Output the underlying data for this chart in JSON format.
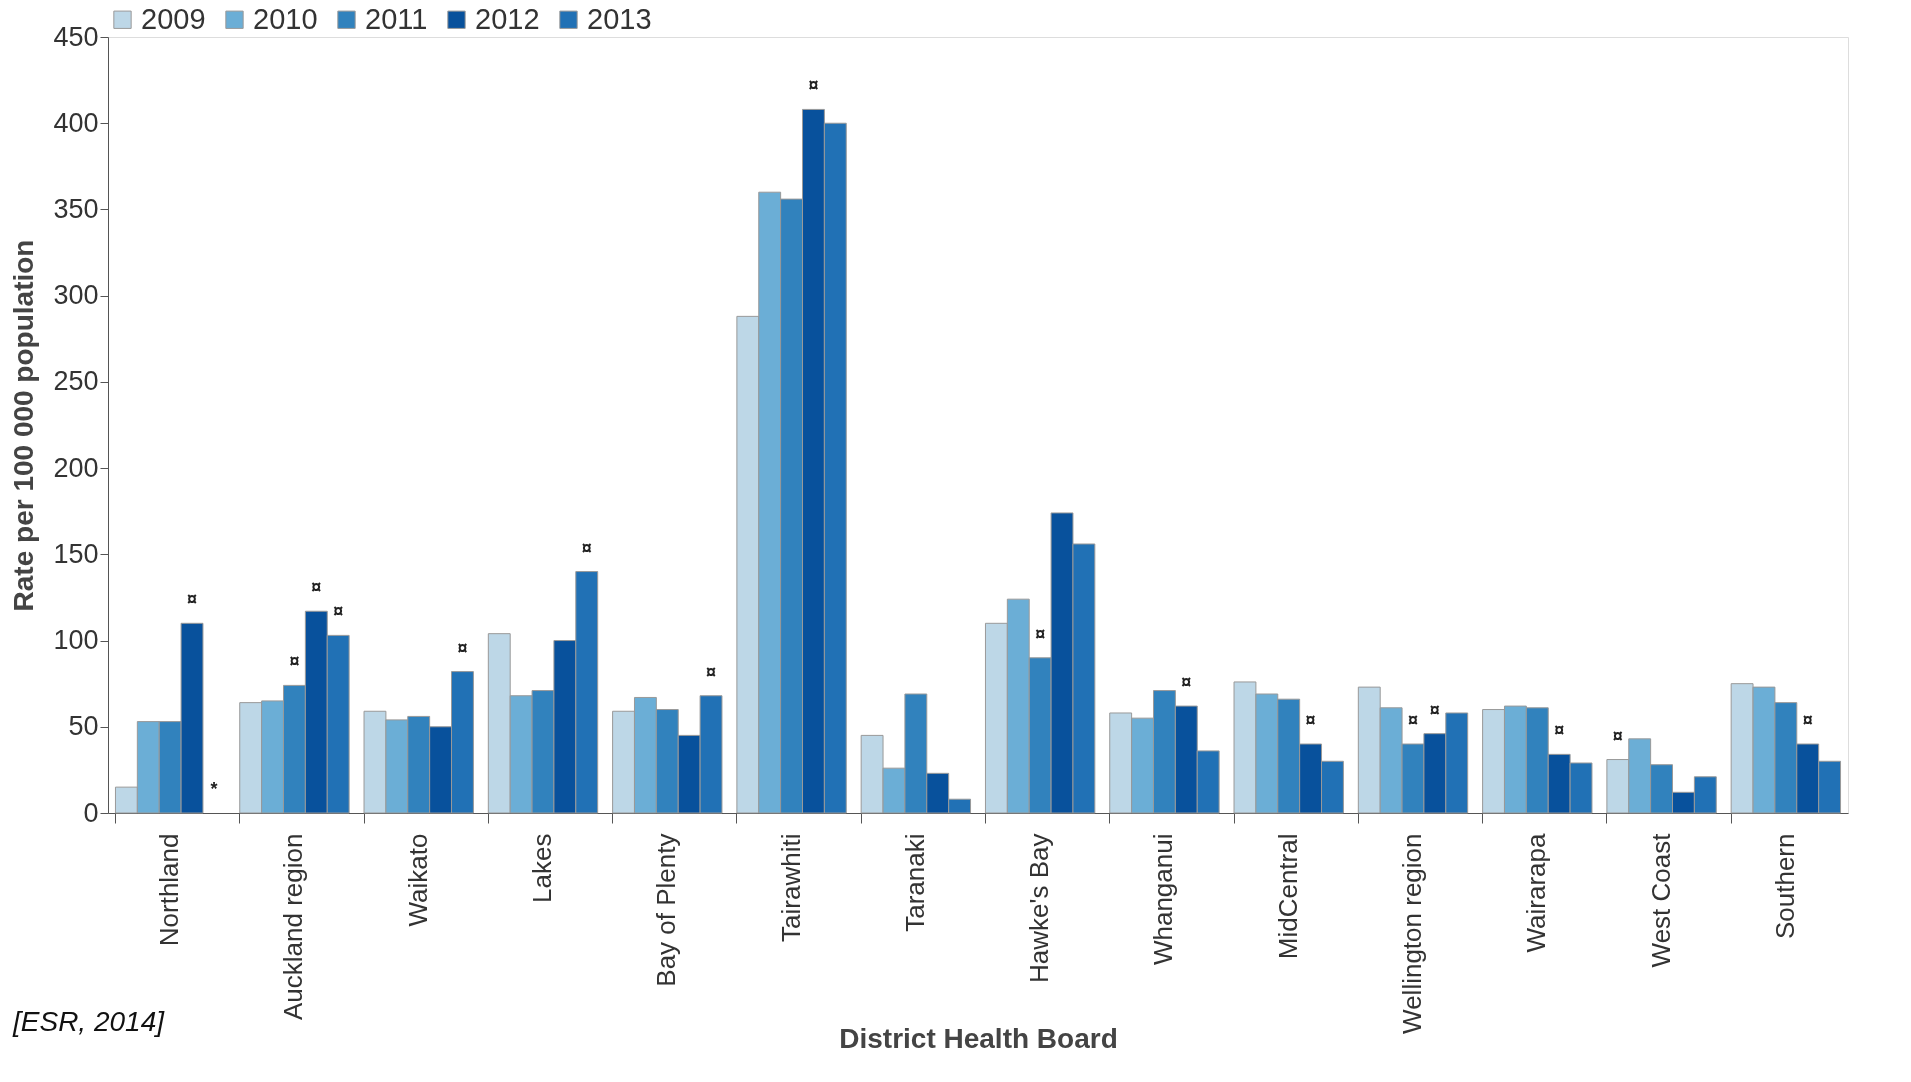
{
  "chart_data": {
    "type": "bar",
    "xlabel": "District Health Board",
    "ylabel": "Rate per 100 000 population",
    "categories": [
      "Northland",
      "Auckland region",
      "Waikato",
      "Lakes",
      "Bay of Plenty",
      "Tairawhiti",
      "Taranaki",
      "Hawke's Bay",
      "Whanganui",
      "MidCentral",
      "Wellington region",
      "Wairarapa",
      "West Coast",
      "Southern"
    ],
    "series": [
      {
        "name": "2009",
        "color": "#bdd7e7",
        "values": [
          15,
          64,
          59,
          104,
          59,
          288,
          45,
          110,
          58,
          76,
          73,
          60,
          31,
          75
        ],
        "value_labels": [
          null,
          null,
          null,
          null,
          null,
          null,
          null,
          null,
          null,
          null,
          null,
          null,
          "¤",
          null
        ]
      },
      {
        "name": "2010",
        "color": "#6baed6",
        "values": [
          53,
          65,
          54,
          68,
          67,
          360,
          26,
          124,
          55,
          69,
          61,
          62,
          43,
          73
        ],
        "value_labels": [
          null,
          null,
          null,
          null,
          null,
          null,
          null,
          null,
          null,
          null,
          null,
          null,
          null,
          null
        ]
      },
      {
        "name": "2011",
        "color": "#3182bd",
        "values": [
          53,
          74,
          56,
          71,
          60,
          356,
          69,
          90,
          71,
          66,
          40,
          61,
          28,
          64
        ],
        "value_labels": [
          null,
          "¤",
          null,
          null,
          null,
          null,
          null,
          "¤",
          null,
          null,
          "¤",
          null,
          null,
          null
        ]
      },
      {
        "name": "2012",
        "color": "#08519c",
        "values": [
          110,
          117,
          50,
          100,
          45,
          408,
          23,
          174,
          62,
          40,
          46,
          34,
          12,
          40
        ],
        "value_labels": [
          "¤",
          "¤",
          null,
          null,
          null,
          "¤",
          null,
          null,
          "¤",
          "¤",
          "¤",
          "¤",
          null,
          "¤"
        ]
      },
      {
        "name": "2013",
        "color": "#2171b5",
        "values": [
          null,
          103,
          82,
          140,
          68,
          400,
          8,
          156,
          36,
          30,
          58,
          29,
          21,
          30
        ],
        "value_labels": [
          "*",
          "¤",
          "¤",
          "¤",
          "¤",
          null,
          null,
          null,
          null,
          null,
          null,
          null,
          null,
          null
        ]
      }
    ],
    "ylim": [
      0,
      450
    ],
    "yticks": [
      0,
      50,
      100,
      150,
      200,
      250,
      300,
      350,
      400,
      450
    ],
    "grid": false,
    "legend": "top",
    "annotations": [
      "[ESR, 2014]"
    ]
  }
}
